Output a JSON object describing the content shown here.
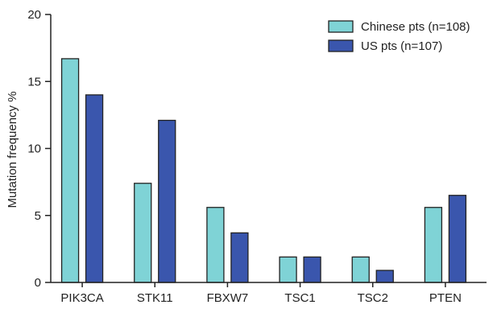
{
  "chart_data": {
    "type": "bar",
    "title": "",
    "xlabel": "",
    "ylabel": "Mutation frequency %",
    "ylim": [
      0,
      20
    ],
    "yticks": [
      0,
      5,
      10,
      15,
      20
    ],
    "categories": [
      "PIK3CA",
      "STK11",
      "FBXW7",
      "TSC1",
      "TSC2",
      "PTEN"
    ],
    "series": [
      {
        "name": "Chinese pts (n=108)",
        "color": "#7fd3d6",
        "values": [
          16.7,
          7.4,
          5.6,
          1.9,
          1.9,
          5.6
        ]
      },
      {
        "name": "US pts (n=107)",
        "color": "#3a56ad",
        "values": [
          14.0,
          12.1,
          3.7,
          1.9,
          0.9,
          6.5
        ]
      }
    ],
    "legend_position": "top-right",
    "grid": false
  }
}
